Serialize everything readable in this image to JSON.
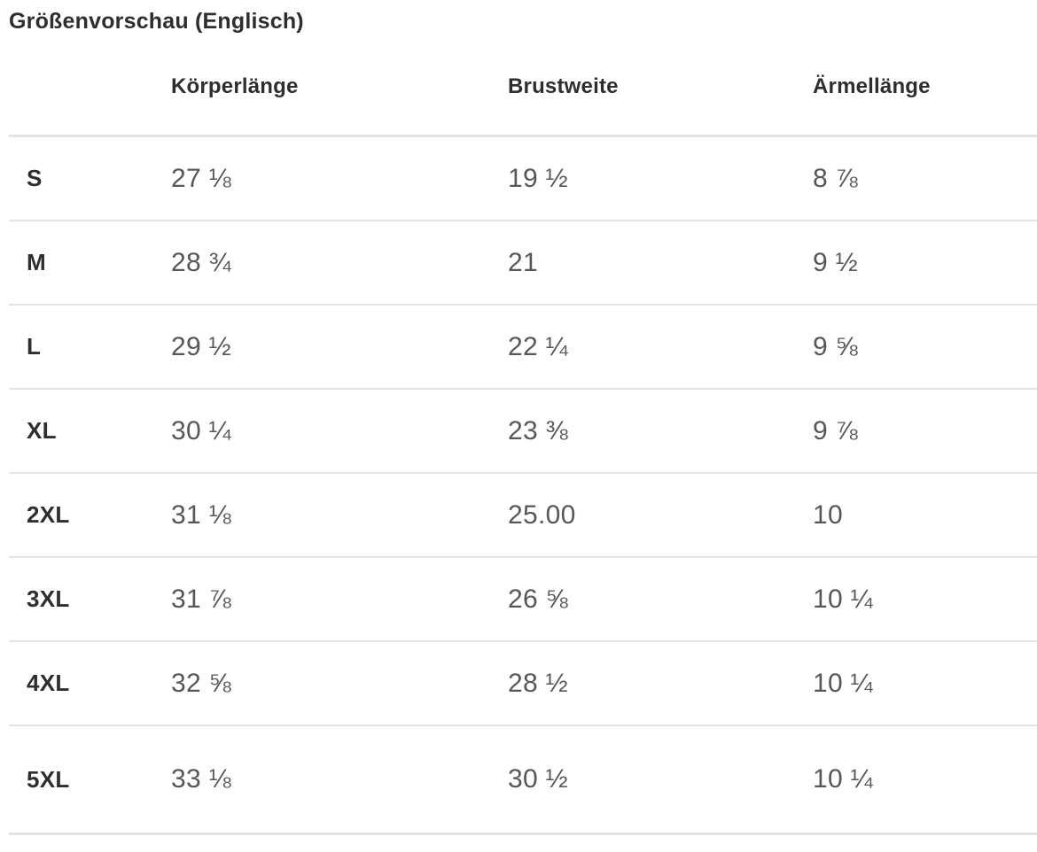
{
  "title": "Größenvorschau (Englisch)",
  "table": {
    "columns": [
      "Körperlänge",
      "Brustweite",
      "Ärmellänge"
    ],
    "rows": [
      {
        "size": "S",
        "values": [
          "27 ⅛",
          "19 ½",
          "8 ⅞"
        ]
      },
      {
        "size": "M",
        "values": [
          "28 ¾",
          "21",
          "9 ½"
        ]
      },
      {
        "size": "L",
        "values": [
          "29 ½",
          "22 ¼",
          "9 ⅝"
        ]
      },
      {
        "size": "XL",
        "values": [
          "30 ¼",
          "23 ⅜",
          "9 ⅞"
        ]
      },
      {
        "size": "2XL",
        "values": [
          "31 ⅛",
          "25.00",
          "10"
        ]
      },
      {
        "size": "3XL",
        "values": [
          "31 ⅞",
          "26 ⅝",
          "10 ¼"
        ]
      },
      {
        "size": "4XL",
        "values": [
          "32 ⅝",
          "28 ½",
          "10 ¼"
        ]
      },
      {
        "size": "5XL",
        "values": [
          "33 ⅛",
          "30 ½",
          "10 ¼"
        ]
      }
    ]
  },
  "colors": {
    "heading_text": "#2e2e2e",
    "value_text": "#55575b",
    "divider": "#e4e4e4",
    "background": "#ffffff"
  }
}
